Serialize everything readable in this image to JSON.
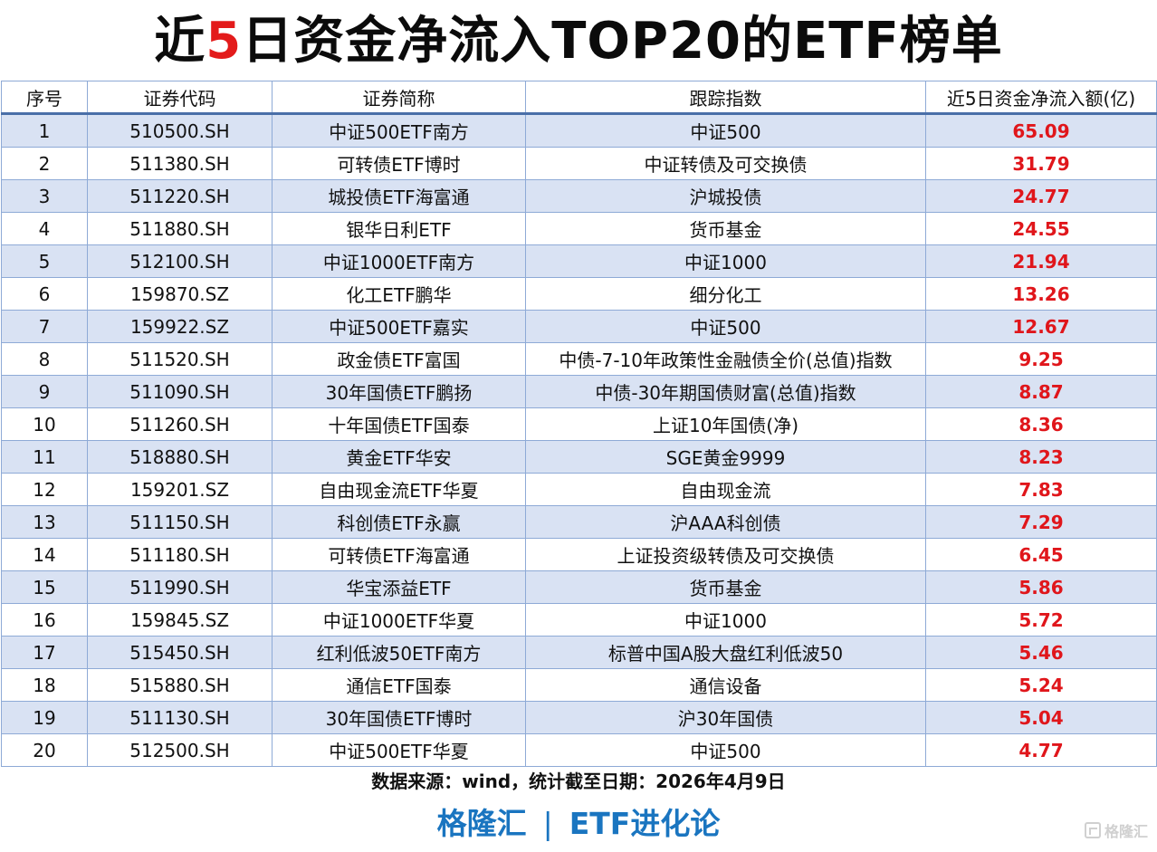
{
  "title": {
    "prefix": "近",
    "highlight": "5",
    "suffix": "日资金净流入TOP20的ETF榜单",
    "highlight_color": "#e31b1b"
  },
  "table": {
    "headers": [
      "序号",
      "证券代码",
      "证券简称",
      "跟踪指数",
      "近5日资金净流入额(亿)"
    ],
    "rows": [
      {
        "rank": "1",
        "code": "510500.SH",
        "name": "中证500ETF南方",
        "index": "中证500",
        "flow": "65.09"
      },
      {
        "rank": "2",
        "code": "511380.SH",
        "name": "可转债ETF博时",
        "index": "中证转债及可交换债",
        "flow": "31.79"
      },
      {
        "rank": "3",
        "code": "511220.SH",
        "name": "城投债ETF海富通",
        "index": "沪城投债",
        "flow": "24.77"
      },
      {
        "rank": "4",
        "code": "511880.SH",
        "name": "银华日利ETF",
        "index": "货币基金",
        "flow": "24.55"
      },
      {
        "rank": "5",
        "code": "512100.SH",
        "name": "中证1000ETF南方",
        "index": "中证1000",
        "flow": "21.94"
      },
      {
        "rank": "6",
        "code": "159870.SZ",
        "name": "化工ETF鹏华",
        "index": "细分化工",
        "flow": "13.26"
      },
      {
        "rank": "7",
        "code": "159922.SZ",
        "name": "中证500ETF嘉实",
        "index": "中证500",
        "flow": "12.67"
      },
      {
        "rank": "8",
        "code": "511520.SH",
        "name": "政金债ETF富国",
        "index": "中债-7-10年政策性金融债全价(总值)指数",
        "flow": "9.25"
      },
      {
        "rank": "9",
        "code": "511090.SH",
        "name": "30年国债ETF鹏扬",
        "index": "中债-30年期国债财富(总值)指数",
        "flow": "8.87"
      },
      {
        "rank": "10",
        "code": "511260.SH",
        "name": "十年国债ETF国泰",
        "index": "上证10年国债(净)",
        "flow": "8.36"
      },
      {
        "rank": "11",
        "code": "518880.SH",
        "name": "黄金ETF华安",
        "index": "SGE黄金9999",
        "flow": "8.23"
      },
      {
        "rank": "12",
        "code": "159201.SZ",
        "name": "自由现金流ETF华夏",
        "index": "自由现金流",
        "flow": "7.83"
      },
      {
        "rank": "13",
        "code": "511150.SH",
        "name": "科创债ETF永赢",
        "index": "沪AAA科创债",
        "flow": "7.29"
      },
      {
        "rank": "14",
        "code": "511180.SH",
        "name": "可转债ETF海富通",
        "index": "上证投资级转债及可交换债",
        "flow": "6.45"
      },
      {
        "rank": "15",
        "code": "511990.SH",
        "name": "华宝添益ETF",
        "index": "货币基金",
        "flow": "5.86"
      },
      {
        "rank": "16",
        "code": "159845.SZ",
        "name": "中证1000ETF华夏",
        "index": "中证1000",
        "flow": "5.72"
      },
      {
        "rank": "17",
        "code": "515450.SH",
        "name": "红利低波50ETF南方",
        "index": "标普中国A股大盘红利低波50",
        "flow": "5.46"
      },
      {
        "rank": "18",
        "code": "515880.SH",
        "name": "通信ETF国泰",
        "index": "通信设备",
        "flow": "5.24"
      },
      {
        "rank": "19",
        "code": "511130.SH",
        "name": "30年国债ETF博时",
        "index": "沪30年国债",
        "flow": "5.04"
      },
      {
        "rank": "20",
        "code": "512500.SH",
        "name": "中证500ETF华夏",
        "index": "中证500",
        "flow": "4.77"
      }
    ],
    "colors": {
      "header_border": "#4a6fa8",
      "grid": "#8eaad6",
      "stripe": "#d9e2f3",
      "flow_text": "#e0161b"
    }
  },
  "footer": {
    "source": "数据来源：wind，统计截至日期：2026年4月9日",
    "brand_left": "格隆汇",
    "brand_sep": "|",
    "brand_right": "ETF进化论",
    "brand_color": "#1a75c0"
  },
  "watermark": {
    "text": "格隆汇",
    "icon": "gelonghui-logo-icon"
  }
}
